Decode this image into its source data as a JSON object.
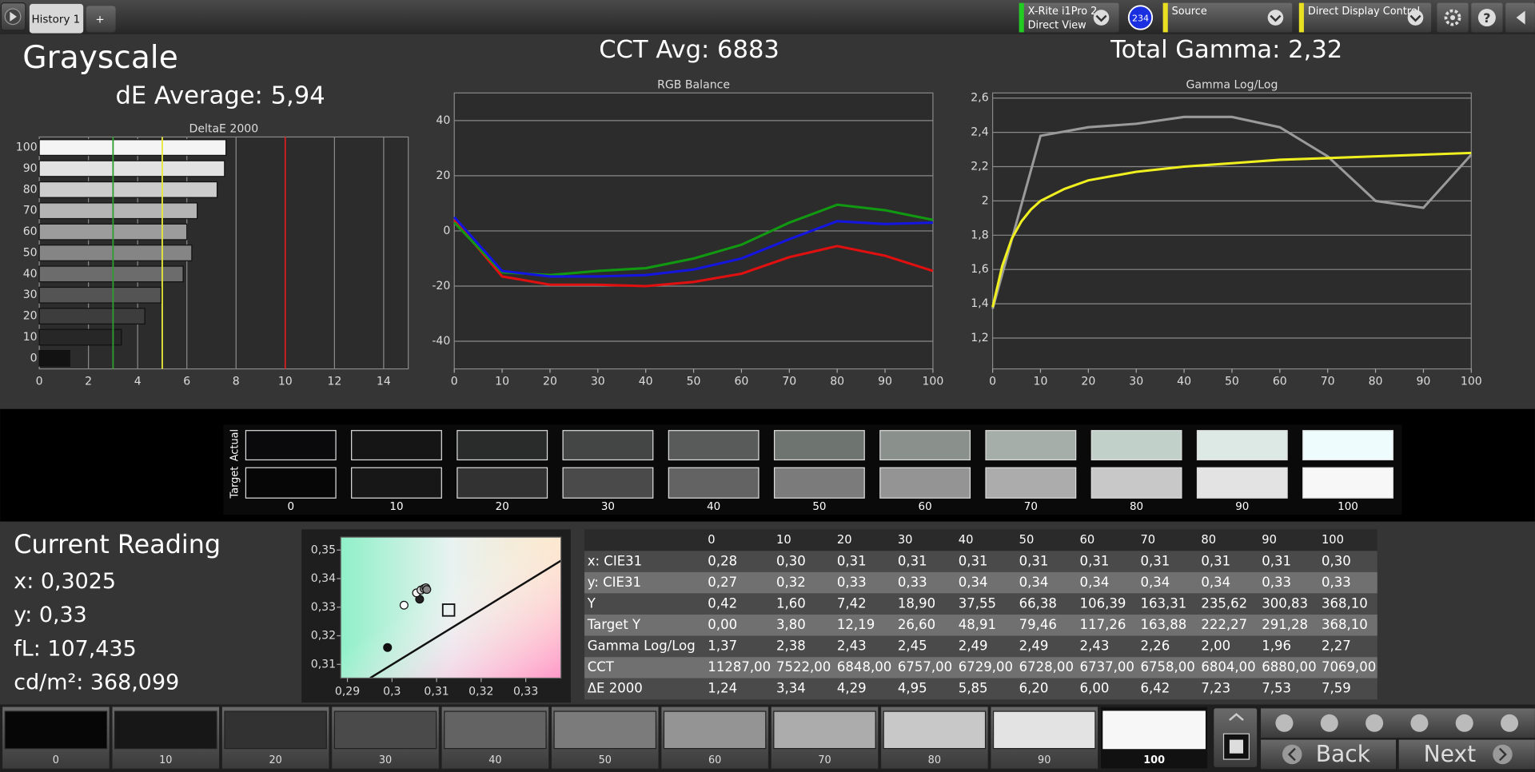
{
  "toolbar": {
    "tab": "History 1",
    "add": "+",
    "meter": [
      "X-Rite i1Pro 2",
      "Direct View"
    ],
    "badge": "234",
    "source": "Source",
    "display": "Direct Display Control",
    "help": "?"
  },
  "header": {
    "title": "Grayscale",
    "de_average": "dE Average: 5,94",
    "cct_avg": "CCT Avg: 6883",
    "total_gamma": "Total Gamma: 2,32"
  },
  "chart_data": [
    {
      "type": "bar",
      "orientation": "horizontal",
      "title": "DeltaE 2000",
      "categories": [
        "100",
        "90",
        "80",
        "70",
        "60",
        "50",
        "40",
        "30",
        "20",
        "10",
        "0"
      ],
      "values": [
        7.59,
        7.53,
        7.23,
        6.42,
        6.0,
        6.2,
        5.85,
        4.95,
        4.29,
        3.34,
        1.24
      ],
      "colors": [
        "#f4f4f4",
        "#e2e2e2",
        "#cccccc",
        "#b4b4b4",
        "#9c9c9c",
        "#858585",
        "#6c6c6c",
        "#545454",
        "#3d3d3d",
        "#272727",
        "#121212"
      ],
      "xlim": [
        0,
        15
      ],
      "xticks": [
        0,
        2,
        4,
        6,
        8,
        10,
        12,
        14
      ],
      "reference_lines": [
        {
          "value": 3,
          "color": "#2e9e2e"
        },
        {
          "value": 5,
          "color": "#e8e83a"
        },
        {
          "value": 10,
          "color": "#d42020"
        }
      ],
      "grid": true
    },
    {
      "type": "line",
      "title": "RGB Balance",
      "x": [
        0,
        10,
        20,
        30,
        40,
        50,
        60,
        70,
        80,
        90,
        100
      ],
      "series": [
        {
          "color": "#e01010",
          "values": [
            4,
            -16.5,
            -19.5,
            -19.5,
            -20,
            -18.5,
            -15.5,
            -9.5,
            -5.5,
            -9,
            -14.5
          ]
        },
        {
          "color": "#119a11",
          "values": [
            3,
            -15,
            -16,
            -14.5,
            -13.5,
            -10,
            -5,
            3,
            9.5,
            7.5,
            4
          ]
        },
        {
          "color": "#1515e0",
          "values": [
            5,
            -14.5,
            -16.5,
            -16.5,
            -16,
            -14,
            -10,
            -3,
            3.5,
            2.5,
            3
          ]
        }
      ],
      "xlim": [
        0,
        100
      ],
      "xticks": [
        0,
        10,
        20,
        30,
        40,
        50,
        60,
        70,
        80,
        90,
        100
      ],
      "ylim": [
        -50,
        50
      ],
      "yticks": [
        -40,
        -20,
        0,
        20,
        40
      ],
      "grid": true
    },
    {
      "type": "line",
      "title": "Gamma Log/Log",
      "x": [
        0,
        10,
        20,
        30,
        40,
        50,
        60,
        70,
        80,
        90,
        100
      ],
      "series": [
        {
          "color": "#9a9a9a",
          "values": [
            1.37,
            2.38,
            2.43,
            2.45,
            2.49,
            2.49,
            2.43,
            2.26,
            2.0,
            1.96,
            2.27
          ]
        },
        {
          "color": "#f0f020",
          "x": [
            0,
            2,
            4,
            6,
            8,
            10,
            15,
            20,
            30,
            40,
            50,
            60,
            70,
            80,
            90,
            100
          ],
          "values": [
            1.38,
            1.62,
            1.78,
            1.88,
            1.95,
            2.0,
            2.07,
            2.12,
            2.17,
            2.2,
            2.22,
            2.24,
            2.25,
            2.26,
            2.27,
            2.28
          ]
        }
      ],
      "xlim": [
        0,
        100
      ],
      "xticks": [
        0,
        10,
        20,
        30,
        40,
        50,
        60,
        70,
        80,
        90,
        100
      ],
      "ylim": [
        1.02,
        2.63
      ],
      "yticks": [
        {
          "value": 1.2,
          "label": "1,2"
        },
        {
          "value": 1.4,
          "label": "1,4"
        },
        {
          "value": 1.6,
          "label": "1,6"
        },
        {
          "value": 1.8,
          "label": "1,8"
        },
        2,
        {
          "value": 2.2,
          "label": "2,2"
        },
        {
          "value": 2.4,
          "label": "2,4"
        },
        {
          "value": 2.6,
          "label": "2,6"
        }
      ],
      "grid": true
    },
    {
      "type": "scatter",
      "x": [
        0.299,
        0.3027,
        0.3062,
        0.3055,
        0.3065,
        0.3072,
        0.3076,
        0.3078
      ],
      "values": [
        0.3159,
        0.3307,
        0.3328,
        0.335,
        0.336,
        0.3365,
        0.3368,
        0.3362
      ],
      "colors": [
        "#111111",
        "#ffffff",
        "#222222",
        "#f4f4f4",
        "#d8d8d8",
        "#b8b8b8",
        "#a0a0a0",
        "#888888"
      ],
      "target": {
        "x": 0.3127,
        "y": 0.329
      },
      "xlim": [
        0.2885,
        0.3379
      ],
      "xticks": [
        {
          "value": 0.29,
          "label": "0,29"
        },
        {
          "value": 0.3,
          "label": "0,3"
        },
        {
          "value": 0.31,
          "label": "0,31"
        },
        {
          "value": 0.32,
          "label": "0,32"
        },
        {
          "value": 0.33,
          "label": "0,33"
        }
      ],
      "ylim": [
        0.3052,
        0.3545
      ],
      "yticks": [
        {
          "value": 0.31,
          "label": "0,31"
        },
        {
          "value": 0.32,
          "label": "0,32"
        },
        {
          "value": 0.33,
          "label": "0,33"
        },
        {
          "value": 0.34,
          "label": "0,34"
        },
        {
          "value": 0.35,
          "label": "0,35"
        }
      ]
    }
  ],
  "swatches": {
    "row_labels": [
      "Actual",
      "Target"
    ],
    "levels": [
      "0",
      "10",
      "20",
      "30",
      "40",
      "50",
      "60",
      "70",
      "80",
      "90",
      "100"
    ],
    "actual": [
      "#0a0a0c",
      "#151516",
      "#2a2b2b",
      "#434645",
      "#585b5a",
      "#6e7470",
      "#8a918d",
      "#a6aeaa",
      "#c2d0ca",
      "#dde9e4",
      "#eefcfd"
    ],
    "target": [
      "#060606",
      "#171717",
      "#323232",
      "#4a4a4a",
      "#636363",
      "#7b7b7b",
      "#949494",
      "#acacac",
      "#c8c8c8",
      "#e3e3e3",
      "#f7f7f7"
    ]
  },
  "current_reading": {
    "title": "Current Reading",
    "lines": [
      "x: 0,3025",
      "y: 0,33",
      "fL: 107,435",
      "cd/m²: 368,099"
    ]
  },
  "table": {
    "columns": [
      "0",
      "10",
      "20",
      "30",
      "40",
      "50",
      "60",
      "70",
      "80",
      "90",
      "100"
    ],
    "rows": [
      {
        "label": "x: CIE31",
        "values": [
          "0,28",
          "0,30",
          "0,31",
          "0,31",
          "0,31",
          "0,31",
          "0,31",
          "0,31",
          "0,31",
          "0,31",
          "0,30"
        ]
      },
      {
        "label": "y: CIE31",
        "values": [
          "0,27",
          "0,32",
          "0,33",
          "0,33",
          "0,34",
          "0,34",
          "0,34",
          "0,34",
          "0,34",
          "0,33",
          "0,33"
        ]
      },
      {
        "label": "Y",
        "values": [
          "0,42",
          "1,60",
          "7,42",
          "18,90",
          "37,55",
          "66,38",
          "106,39",
          "163,31",
          "235,62",
          "300,83",
          "368,10"
        ]
      },
      {
        "label": "Target Y",
        "values": [
          "0,00",
          "3,80",
          "12,19",
          "26,60",
          "48,91",
          "79,46",
          "117,26",
          "163,88",
          "222,27",
          "291,28",
          "368,10"
        ]
      },
      {
        "label": "Gamma Log/Log",
        "values": [
          "1,37",
          "2,38",
          "2,43",
          "2,45",
          "2,49",
          "2,49",
          "2,43",
          "2,26",
          "2,00",
          "1,96",
          "2,27"
        ]
      },
      {
        "label": "CCT",
        "values": [
          "11287,00",
          "7522,00",
          "6848,00",
          "6757,00",
          "6729,00",
          "6728,00",
          "6737,00",
          "6758,00",
          "6804,00",
          "6880,00",
          "7069,00"
        ]
      },
      {
        "label": "ΔE 2000",
        "values": [
          "1,24",
          "3,34",
          "4,29",
          "4,95",
          "5,85",
          "6,20",
          "6,00",
          "6,42",
          "7,23",
          "7,53",
          "7,59"
        ]
      }
    ]
  },
  "bottom_bar": {
    "levels": [
      "0",
      "10",
      "20",
      "30",
      "40",
      "50",
      "60",
      "70",
      "80",
      "90",
      "100"
    ],
    "back": "Back",
    "next": "Next"
  }
}
